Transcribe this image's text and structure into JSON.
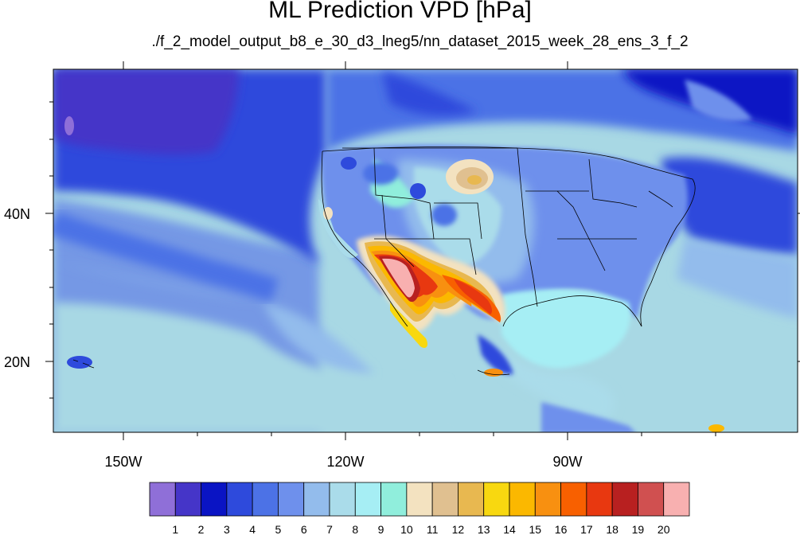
{
  "title": "ML Prediction VPD [hPa]",
  "subtitle": "./f_2_model_output_b8_e_30_d3_lneg5/nn_dataset_2015_week_28_ens_3_f_2",
  "axes": {
    "x_labels": [
      "150W",
      "120W",
      "90W"
    ],
    "y_labels": [
      "40N",
      "20N"
    ]
  },
  "colorbar": {
    "labels": [
      "1",
      "2",
      "3",
      "4",
      "5",
      "6",
      "7",
      "8",
      "9",
      "10",
      "11",
      "12",
      "13",
      "14",
      "15",
      "16",
      "17",
      "18",
      "19",
      "20"
    ],
    "colors": [
      "#8f6fd8",
      "#4535c8",
      "#0a14c4",
      "#2e4adc",
      "#4c72e6",
      "#6e90ec",
      "#93bcec",
      "#aadcea",
      "#a6eef4",
      "#90eedc",
      "#f3e2c0",
      "#e0c090",
      "#e8b850",
      "#f8d810",
      "#fbb800",
      "#f89010",
      "#f86000",
      "#e83810",
      "#b82020",
      "#d05050",
      "#f8b0b0"
    ]
  },
  "colors": {
    "ocean_deep": "#3a3ac4",
    "ocean_mid": "#4c72e6",
    "ocean_light": "#a8d8e6"
  }
}
